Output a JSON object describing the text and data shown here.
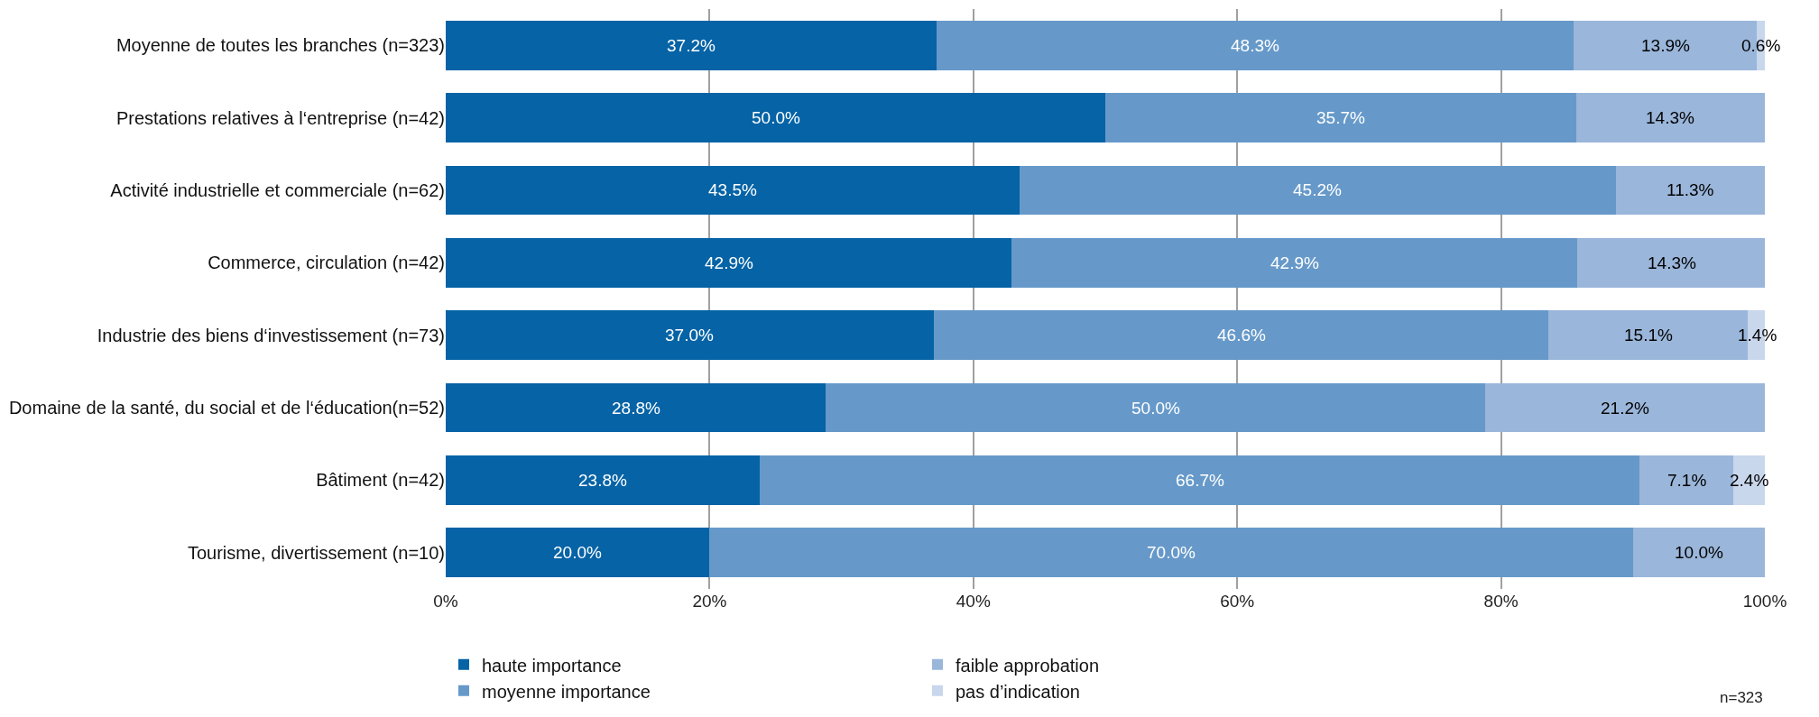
{
  "chart_data": {
    "type": "bar",
    "orientation": "horizontal",
    "stacked": true,
    "categories": [
      "Moyenne de toutes les branches (n=323)",
      "Prestations relatives à l‘entreprise (n=42)",
      "Activité industrielle et commerciale (n=62)",
      "Commerce, circulation (n=42)",
      "Industrie des biens d‘investissement (n=73)",
      "Domaine de la santé, du social et de l‘éducation(n=52)",
      "Bâtiment (n=42)",
      "Tourisme, divertissement (n=10)"
    ],
    "series": [
      {
        "name": "haute importance",
        "color": "#0563a6",
        "values": [
          37.2,
          50.0,
          43.5,
          42.9,
          37.0,
          28.8,
          23.8,
          20.0
        ],
        "value_labels": [
          "37.2%",
          "50.0%",
          "43.5%",
          "42.9%",
          "37.0%",
          "28.8%",
          "23.8%",
          "20.0%"
        ]
      },
      {
        "name": "moyenne importance",
        "color": "#6699c9",
        "values": [
          48.3,
          35.7,
          45.2,
          42.9,
          46.6,
          50.0,
          66.7,
          70.0
        ],
        "value_labels": [
          "48.3%",
          "35.7%",
          "45.2%",
          "42.9%",
          "46.6%",
          "50.0%",
          "66.7%",
          "70.0%"
        ]
      },
      {
        "name": "faible approbation",
        "color": "#9ab6da",
        "values": [
          13.9,
          14.3,
          11.3,
          14.3,
          15.1,
          21.2,
          7.1,
          10.0
        ],
        "value_labels": [
          "13.9%",
          "14.3%",
          "11.3%",
          "14.3%",
          "15.1%",
          "21.2%",
          "7.1%",
          "10.0%"
        ]
      },
      {
        "name": "pas d’indication",
        "color": "#c9d7ec",
        "values": [
          0.6,
          null,
          null,
          null,
          1.4,
          null,
          2.4,
          null
        ],
        "value_labels": [
          "0.6%",
          null,
          null,
          null,
          "1.4%",
          null,
          "2.4%",
          null
        ]
      }
    ],
    "xlim": [
      0,
      100
    ],
    "xticks": [
      {
        "value": 0,
        "label": "0%"
      },
      {
        "value": 20,
        "label": "20%"
      },
      {
        "value": 40,
        "label": "40%"
      },
      {
        "value": 60,
        "label": "60%"
      },
      {
        "value": 80,
        "label": "80%"
      },
      {
        "value": 100,
        "label": "100%"
      }
    ],
    "grid": "x",
    "legend": "bottom",
    "annotations": [
      "n=323"
    ]
  }
}
